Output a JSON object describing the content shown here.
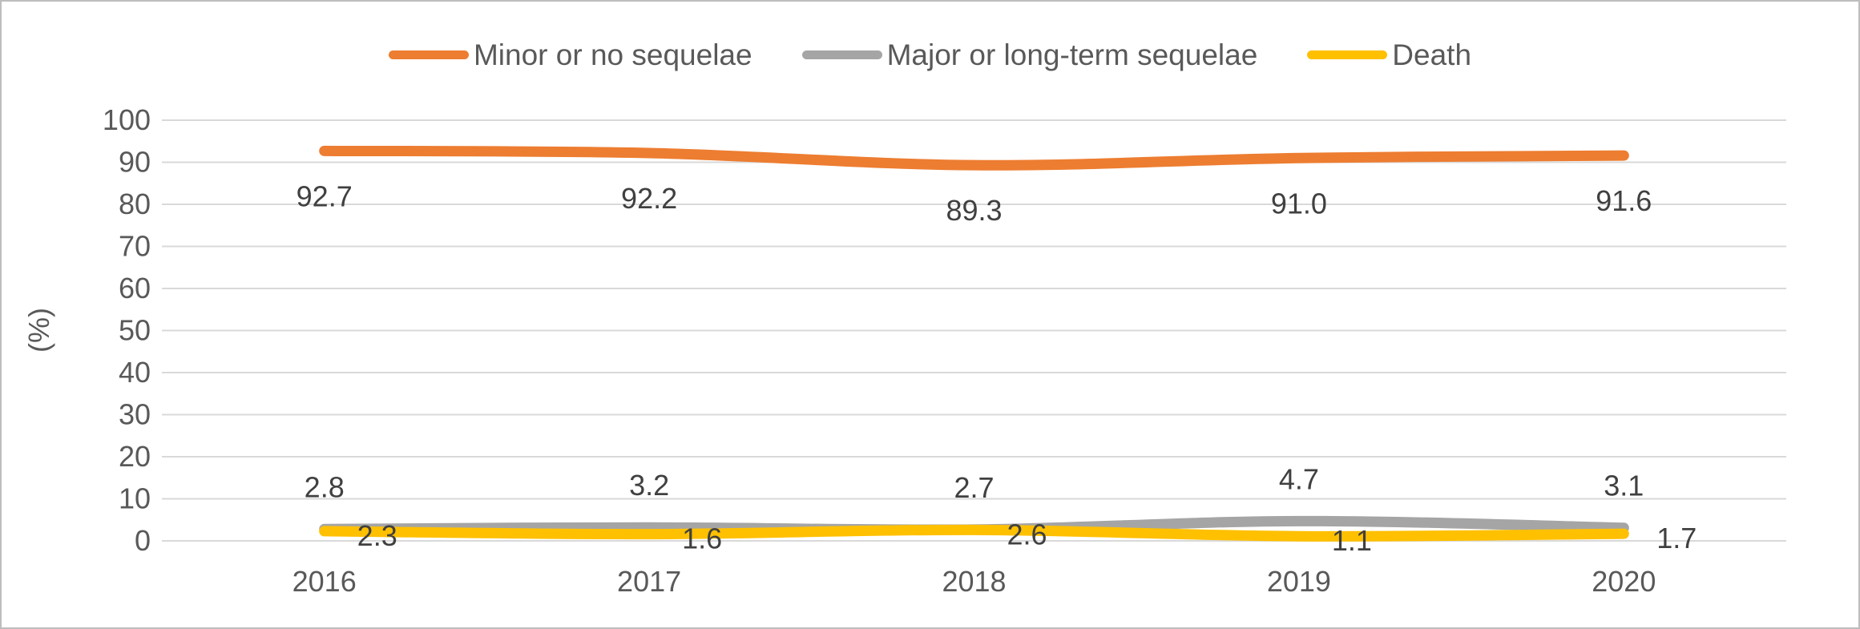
{
  "chart_data": {
    "type": "line",
    "title": "",
    "xlabel": "",
    "ylabel": "(%)",
    "categories": [
      "2016",
      "2017",
      "2018",
      "2019",
      "2020"
    ],
    "series": [
      {
        "name": "Minor or no sequelae",
        "color": "#ED7D31",
        "values": [
          92.7,
          92.2,
          89.3,
          91.0,
          91.6
        ],
        "label_position": "below"
      },
      {
        "name": "Major or long-term sequelae",
        "color": "#A5A5A5",
        "values": [
          2.8,
          3.2,
          2.7,
          4.7,
          3.1
        ],
        "label_position": "above"
      },
      {
        "name": "Death",
        "color": "#FFC000",
        "values": [
          2.3,
          1.6,
          2.6,
          1.1,
          1.7
        ],
        "label_position": "right"
      }
    ],
    "ylim": [
      0,
      100
    ],
    "ytick_step": 10,
    "yticks": [
      "0",
      "10",
      "20",
      "30",
      "40",
      "50",
      "60",
      "70",
      "80",
      "90",
      "100"
    ],
    "grid": true,
    "smooth_lines": true,
    "legend_position": "top",
    "colors": {
      "gridline": "#D9D9D9",
      "axis_text": "#595959",
      "data_label": "#404040",
      "frame_border": "#BDBDBD"
    }
  }
}
